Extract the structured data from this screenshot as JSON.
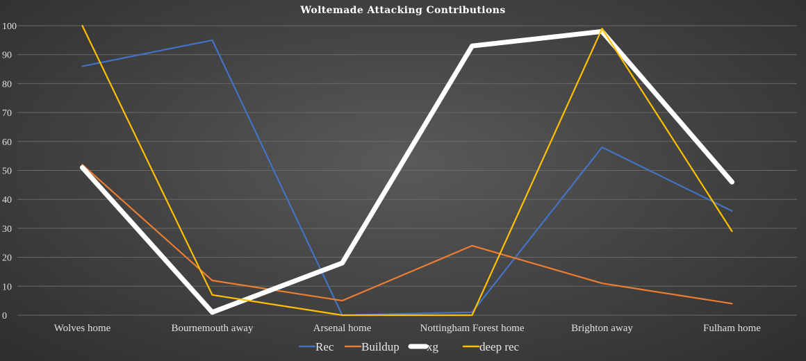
{
  "chart_data": {
    "type": "line",
    "title": "Woltemade Attacking Contributions",
    "xlabel": "",
    "ylabel": "",
    "categories": [
      "Wolves home",
      "Bournemouth away",
      "Arsenal home",
      "Nottingham Forest home",
      "Brighton away",
      "Fulham home"
    ],
    "ylim": [
      0,
      100
    ],
    "yticks": [
      0,
      10,
      20,
      30,
      40,
      50,
      60,
      70,
      80,
      90,
      100
    ],
    "grid": true,
    "legend_position": "bottom",
    "series": [
      {
        "name": "Rec",
        "color": "#4472c4",
        "values": [
          86,
          95,
          0,
          1,
          58,
          36
        ]
      },
      {
        "name": "Buildup",
        "color": "#ed7d31",
        "values": [
          52,
          12,
          5,
          24,
          11,
          4
        ]
      },
      {
        "name": "xg",
        "color": "#ffffff",
        "values": [
          51,
          1,
          18,
          93,
          98,
          46
        ]
      },
      {
        "name": "deep rec",
        "color": "#ffc000",
        "values": [
          100,
          7,
          0,
          0,
          99,
          29
        ]
      }
    ]
  }
}
